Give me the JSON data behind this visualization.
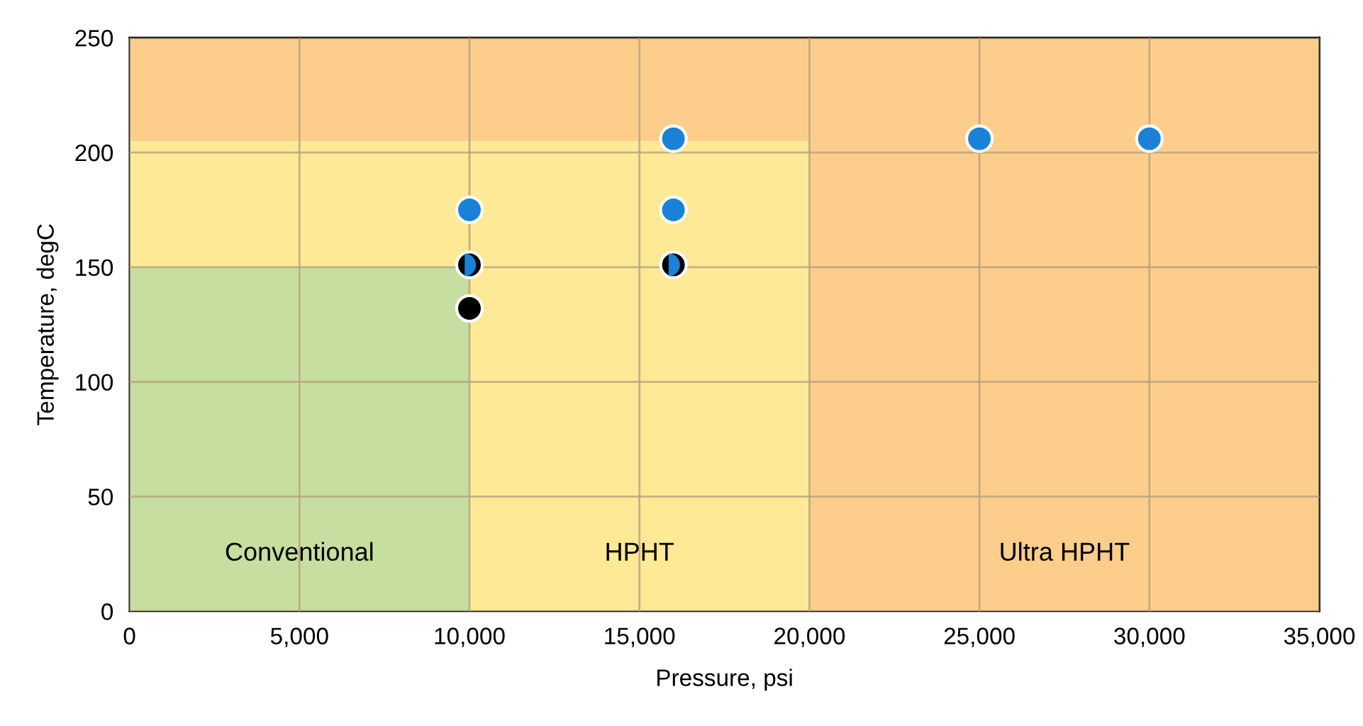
{
  "chart_data": {
    "type": "scatter",
    "xlabel": "Pressure, psi",
    "ylabel": "Temperature, degC",
    "xlim": [
      0,
      35000
    ],
    "ylim": [
      0,
      250
    ],
    "xticks": [
      0,
      {
        "value": 5000,
        "label": "5,000"
      },
      {
        "value": 10000,
        "label": "10,000"
      },
      {
        "value": 15000,
        "label": "15,000"
      },
      {
        "value": 20000,
        "label": "20,000"
      },
      {
        "value": 25000,
        "label": "25,000"
      },
      {
        "value": 30000,
        "label": "30,000"
      },
      {
        "value": 35000,
        "label": "35,000"
      }
    ],
    "yticks": [
      0,
      50,
      100,
      150,
      200,
      250
    ],
    "grid": true,
    "marker": "circle",
    "bands": [
      {
        "axis": "x",
        "from": 0,
        "to": 10000,
        "color": "#c6dea0",
        "label": "Conventional"
      },
      {
        "axis": "x",
        "from": 10000,
        "to": 20000,
        "color": "#fde996",
        "label": "HPHT"
      },
      {
        "axis": "y",
        "from": 150,
        "to": 205,
        "color": "#fde996"
      },
      {
        "axis": "x",
        "from": 20000,
        "to": 35000,
        "color": "#fdcd8c",
        "label": "Ultra HPHT"
      },
      {
        "axis": "y",
        "from": 205,
        "to": 250,
        "color": "#fdcd8c"
      }
    ],
    "series": [
      {
        "color": "#1a82d6",
        "x": [
          10000,
          10000,
          16000,
          16000,
          16000,
          25000,
          30000
        ],
        "values": [
          175,
          151,
          206,
          175,
          151,
          206,
          206
        ]
      },
      {
        "color": "#000000",
        "x": [
          10000,
          10000,
          16000
        ],
        "values": [
          151,
          132,
          151
        ]
      }
    ]
  }
}
